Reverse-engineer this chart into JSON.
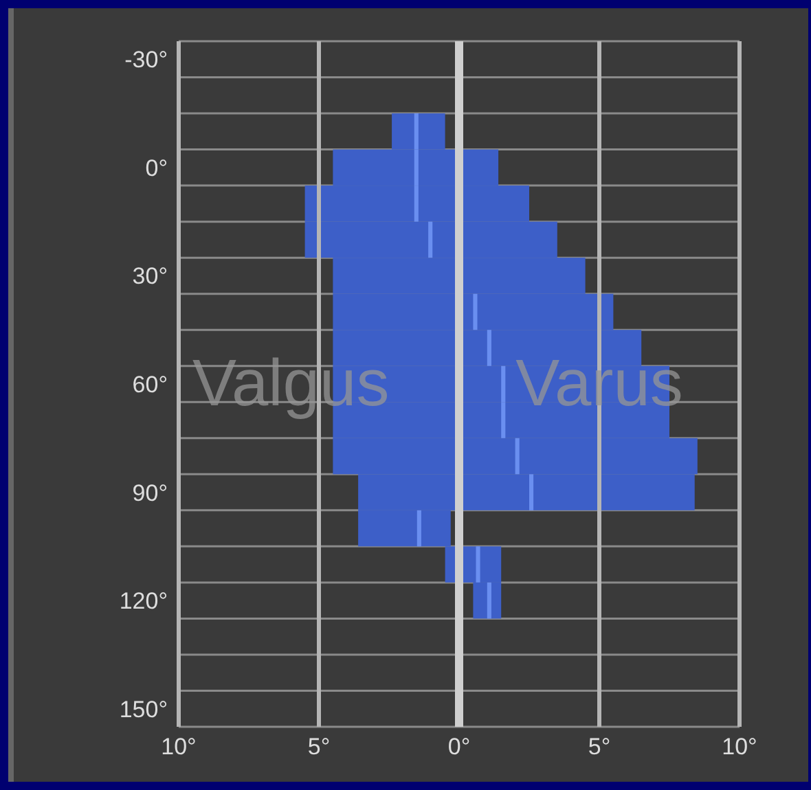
{
  "chart_data": {
    "type": "bar",
    "orientation": "horizontal",
    "categories": [
      "-30°",
      null,
      null,
      "0°",
      null,
      null,
      "30°",
      null,
      null,
      "60°",
      null,
      null,
      "90°",
      null,
      null,
      "120°",
      null,
      null,
      "150°"
    ],
    "series": [
      {
        "color": "#3d5fc8",
        "base": [
          null,
          null,
          -2.4,
          -4.5,
          -5.5,
          -5.5,
          -4.5,
          -4.5,
          -4.5,
          -4.5,
          -4.5,
          -4.5,
          -3.6,
          -3.6,
          -0.5,
          0.5,
          null,
          null,
          null
        ],
        "values": [
          null,
          null,
          1.9,
          5.9,
          8,
          9,
          9,
          10,
          11,
          12,
          12,
          13,
          12,
          3.3,
          2,
          1,
          null,
          null,
          null
        ]
      },
      {
        "color": "#6a8ff0",
        "base": [
          null,
          null,
          -1.6,
          -1.6,
          -1.6,
          -1.1,
          null,
          0.5,
          1,
          1.5,
          1.5,
          2,
          2.5,
          -1.5,
          0.6,
          1,
          null,
          null,
          null
        ],
        "values": [
          null,
          null,
          0.15,
          0.15,
          0.15,
          0.15,
          null,
          0.15,
          0.15,
          0.15,
          0.15,
          0.15,
          0.15,
          0.15,
          0.15,
          0.15,
          null,
          null,
          null
        ]
      }
    ],
    "xlim": [
      -10,
      10
    ],
    "xticks": [
      {
        "value": -10,
        "label": "10°"
      },
      {
        "value": -5,
        "label": "5°"
      },
      {
        "value": 0,
        "label": "0°"
      },
      {
        "value": 5,
        "label": "5°"
      },
      {
        "value": 10,
        "label": "10°"
      }
    ],
    "grid": true,
    "legend": false,
    "ref_lines": [
      {
        "axis": "x",
        "value": 0,
        "color": "#cfcfcf"
      }
    ],
    "annotations": [
      "Valgus",
      "Varus"
    ]
  }
}
